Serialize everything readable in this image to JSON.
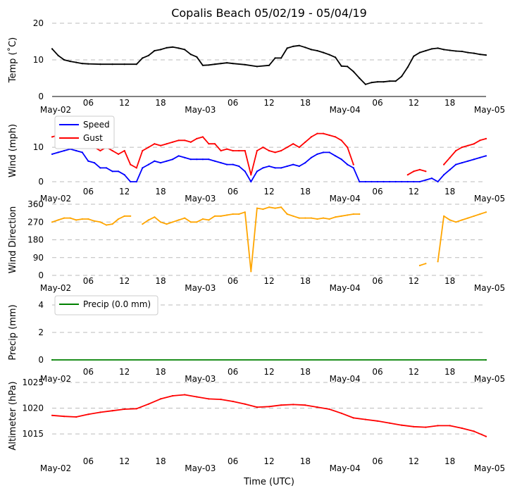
{
  "title": "Copalis Beach 05/02/19 - 05/04/19",
  "xlabel": "Time (UTC)",
  "x_ticks": [
    "May-02",
    "06",
    "12",
    "18",
    "May-03",
    "06",
    "12",
    "18",
    "May-04",
    "06",
    "12",
    "18",
    "May-05"
  ],
  "chart_data": [
    {
      "type": "line",
      "name": "temperature",
      "ylabel": "Temp (˚C)",
      "ylim": [
        0,
        20
      ],
      "yticks": [
        "0",
        "10",
        "20"
      ],
      "x_hours": [
        0,
        1,
        2,
        3,
        4,
        5,
        6,
        8,
        10,
        12,
        14,
        15,
        16,
        17,
        18,
        19,
        20,
        21,
        22,
        23,
        24,
        25,
        26,
        27,
        28,
        29,
        30,
        32,
        34,
        36,
        37,
        38,
        39,
        40,
        41,
        42,
        43,
        44,
        45,
        46,
        47,
        48,
        49,
        50,
        51,
        52,
        53,
        54,
        55,
        56,
        57,
        58,
        59,
        60,
        61,
        62,
        63,
        64,
        65,
        66,
        67,
        68,
        69,
        70,
        71,
        72
      ],
      "series": [
        {
          "name": "Temp",
          "color": "#000000",
          "values": [
            13,
            11.2,
            10,
            9.6,
            9.3,
            9.0,
            8.9,
            8.8,
            8.8,
            8.8,
            8.8,
            10.5,
            11.2,
            12.5,
            12.8,
            13.3,
            13.5,
            13.2,
            12.8,
            11.5,
            10.8,
            8.5,
            8.6,
            8.8,
            9.0,
            9.2,
            9.0,
            8.7,
            8.2,
            8.5,
            10.5,
            10.5,
            13.2,
            13.7,
            13.9,
            13.4,
            12.8,
            12.5,
            12.0,
            11.4,
            10.7,
            8.3,
            8.2,
            6.8,
            5.0,
            3.3,
            3.8,
            4.0,
            4.0,
            4.2,
            4.2,
            5.5,
            8.0,
            11.0,
            12.0,
            12.5,
            13.0,
            13.2,
            12.8,
            12.6,
            12.4,
            12.3,
            12.0,
            11.8,
            11.5,
            11.3
          ]
        }
      ]
    },
    {
      "type": "line",
      "name": "wind",
      "ylabel": "Wind (mph)",
      "ylim": [
        0,
        18
      ],
      "yticks": [
        "0",
        "10"
      ],
      "x_hours": [
        0,
        1,
        2,
        3,
        4,
        5,
        6,
        7,
        8,
        9,
        10,
        11,
        12,
        13,
        14,
        15,
        16,
        17,
        18,
        19,
        20,
        21,
        22,
        23,
        24,
        25,
        26,
        27,
        28,
        29,
        30,
        31,
        32,
        33,
        34,
        35,
        36,
        37,
        38,
        39,
        40,
        41,
        42,
        43,
        44,
        45,
        46,
        47,
        48,
        49,
        50,
        51,
        52,
        53,
        54,
        55,
        56,
        57,
        58,
        59,
        60,
        61,
        62,
        63,
        64,
        65,
        66,
        67,
        68,
        69,
        70,
        71,
        72
      ],
      "series": [
        {
          "name": "Speed",
          "color": "#0000ff",
          "values": [
            8,
            8.5,
            9,
            9.5,
            9,
            8.5,
            6,
            5.5,
            4,
            4,
            3,
            3,
            2,
            0,
            0,
            4,
            5,
            6,
            5.5,
            6,
            6.5,
            7.5,
            7,
            6.5,
            6.5,
            6.5,
            6.5,
            6,
            5.5,
            5,
            5,
            4.5,
            3,
            0,
            3,
            4,
            4.5,
            4,
            4,
            4.5,
            5,
            4.5,
            5.5,
            7,
            8,
            8.5,
            8.5,
            7.5,
            6.5,
            5,
            4,
            0,
            0,
            0,
            0,
            0,
            0,
            0,
            0,
            0,
            0,
            0,
            0.5,
            1,
            0,
            2,
            3.5,
            5,
            5.5,
            6,
            6.5,
            7,
            7.5
          ]
        },
        {
          "name": "Gust",
          "color": "#ff0000",
          "values": [
            13,
            13.5,
            14,
            14.5,
            14,
            13,
            11,
            10,
            9,
            10,
            9,
            8,
            9,
            5,
            4,
            9,
            10,
            11,
            10.5,
            11,
            11.5,
            12,
            12,
            11.5,
            12.5,
            13,
            11,
            11,
            9,
            9.5,
            9,
            9,
            9,
            2,
            9,
            10,
            9,
            8.5,
            9,
            10,
            11,
            10,
            11.5,
            13,
            14,
            14,
            13.5,
            13,
            12,
            10,
            5,
            null,
            null,
            null,
            null,
            null,
            null,
            null,
            null,
            2,
            3,
            3.5,
            3,
            null,
            null,
            5,
            7,
            9,
            10,
            10.5,
            11,
            12,
            12.5
          ]
        }
      ],
      "legend": [
        "Speed",
        "Gust"
      ]
    },
    {
      "type": "line",
      "name": "wind_direction",
      "ylabel": "Wind Direction",
      "ylim": [
        0,
        360
      ],
      "yticks": [
        "0",
        "90",
        "180",
        "270",
        "360"
      ],
      "x_hours": [
        0,
        1,
        2,
        3,
        4,
        5,
        6,
        7,
        8,
        9,
        10,
        11,
        12,
        13,
        14,
        15,
        16,
        17,
        18,
        19,
        20,
        21,
        22,
        23,
        24,
        25,
        26,
        27,
        28,
        29,
        30,
        31,
        32,
        33,
        34,
        35,
        36,
        37,
        38,
        39,
        40,
        41,
        42,
        43,
        44,
        45,
        46,
        47,
        48,
        49,
        50,
        51,
        52,
        53,
        54,
        55,
        56,
        57,
        58,
        59,
        60,
        61,
        62,
        63,
        64,
        65,
        66,
        67,
        68,
        69,
        70,
        71,
        72
      ],
      "series": [
        {
          "name": "Direction",
          "color": "#ffa500",
          "values": [
            270,
            280,
            290,
            290,
            280,
            285,
            285,
            275,
            270,
            255,
            260,
            285,
            300,
            300,
            null,
            260,
            280,
            295,
            270,
            260,
            270,
            280,
            290,
            270,
            270,
            285,
            280,
            300,
            300,
            305,
            310,
            310,
            320,
            20,
            340,
            335,
            345,
            340,
            345,
            310,
            300,
            290,
            290,
            290,
            285,
            290,
            285,
            295,
            300,
            305,
            310,
            310,
            null,
            null,
            null,
            null,
            null,
            null,
            null,
            null,
            null,
            50,
            60,
            null,
            70,
            300,
            280,
            270,
            280,
            290,
            300,
            310,
            320
          ]
        }
      ]
    },
    {
      "type": "line",
      "name": "precip",
      "ylabel": "Precip (mm)",
      "ylim": [
        0,
        4
      ],
      "yticks": [
        "0",
        "2",
        "4"
      ],
      "x_hours": [
        0,
        72
      ],
      "series": [
        {
          "name": "Precip (0.0 mm)",
          "color": "#008000",
          "values": [
            0,
            0
          ]
        }
      ],
      "legend": [
        "Precip (0.0 mm)"
      ]
    },
    {
      "type": "line",
      "name": "altimeter",
      "ylabel": "Altimeter (hPa)",
      "ylim": [
        1012,
        1025
      ],
      "yticks": [
        "1015",
        "1020",
        "1025"
      ],
      "x_hours": [
        0,
        2,
        4,
        6,
        8,
        10,
        12,
        14,
        16,
        18,
        20,
        22,
        24,
        26,
        28,
        30,
        32,
        34,
        36,
        38,
        40,
        42,
        44,
        46,
        48,
        50,
        52,
        54,
        56,
        58,
        60,
        62,
        64,
        66,
        68,
        70,
        72
      ],
      "series": [
        {
          "name": "Altimeter",
          "color": "#ff0000",
          "values": [
            1018.6,
            1018.4,
            1018.3,
            1018.8,
            1019.2,
            1019.5,
            1019.8,
            1019.9,
            1020.8,
            1021.8,
            1022.4,
            1022.6,
            1022.2,
            1021.8,
            1021.7,
            1021.3,
            1020.8,
            1020.2,
            1020.3,
            1020.6,
            1020.7,
            1020.6,
            1020.2,
            1019.8,
            1019.0,
            1018.1,
            1017.8,
            1017.5,
            1017.1,
            1016.7,
            1016.4,
            1016.3,
            1016.6,
            1016.6,
            1016.1,
            1015.5,
            1014.5
          ]
        }
      ]
    }
  ]
}
